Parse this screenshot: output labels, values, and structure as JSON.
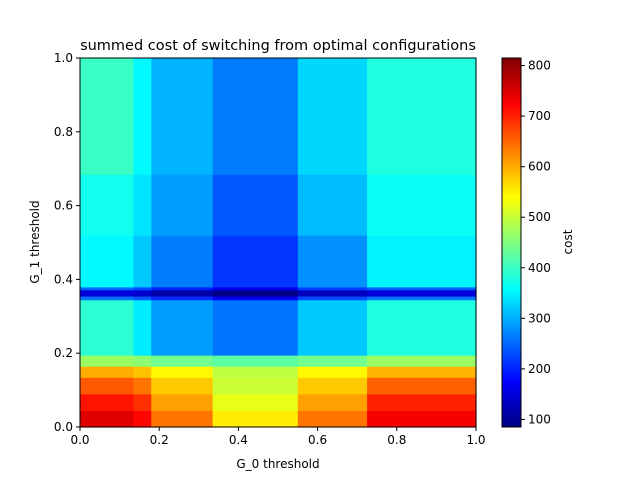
{
  "chart_data": {
    "type": "heatmap",
    "title": "summed cost of switching from optimal configurations",
    "xlabel": "G_0 threshold",
    "ylabel": "G_1 threshold",
    "colorbar_label": "cost",
    "xlim": [
      0,
      1
    ],
    "ylim": [
      0,
      1
    ],
    "x_ticks": [
      "0.0",
      "0.2",
      "0.4",
      "0.6",
      "0.8",
      "1.0"
    ],
    "y_ticks": [
      "0.0",
      "0.2",
      "0.4",
      "0.6",
      "0.8",
      "1.0"
    ],
    "colorbar_ticks": [
      "100",
      "200",
      "300",
      "400",
      "500",
      "600",
      "700",
      "800"
    ],
    "colorbar_range": [
      85,
      815
    ],
    "colormap": "jet",
    "x_edges": [
      0,
      0.135,
      0.18,
      0.335,
      0.55,
      0.725,
      1.0
    ],
    "y_edges": [
      0,
      0.045,
      0.09,
      0.135,
      0.165,
      0.195,
      0.345,
      0.355,
      0.372,
      0.38,
      0.52,
      0.685,
      1.0
    ],
    "values": [
      [
        745,
        720,
        640,
        555,
        640,
        730
      ],
      [
        710,
        690,
        610,
        525,
        610,
        700
      ],
      [
        660,
        640,
        580,
        505,
        580,
        655
      ],
      [
        600,
        585,
        545,
        495,
        545,
        595
      ],
      [
        470,
        460,
        440,
        425,
        440,
        470
      ],
      [
        390,
        345,
        290,
        260,
        320,
        380
      ],
      [
        260,
        240,
        205,
        170,
        230,
        260
      ],
      [
        150,
        140,
        115,
        90,
        130,
        150
      ],
      [
        250,
        230,
        200,
        165,
        220,
        245
      ],
      [
        355,
        320,
        265,
        215,
        280,
        350
      ],
      [
        370,
        340,
        290,
        240,
        310,
        365
      ],
      [
        400,
        355,
        305,
        265,
        330,
        380
      ]
    ]
  }
}
